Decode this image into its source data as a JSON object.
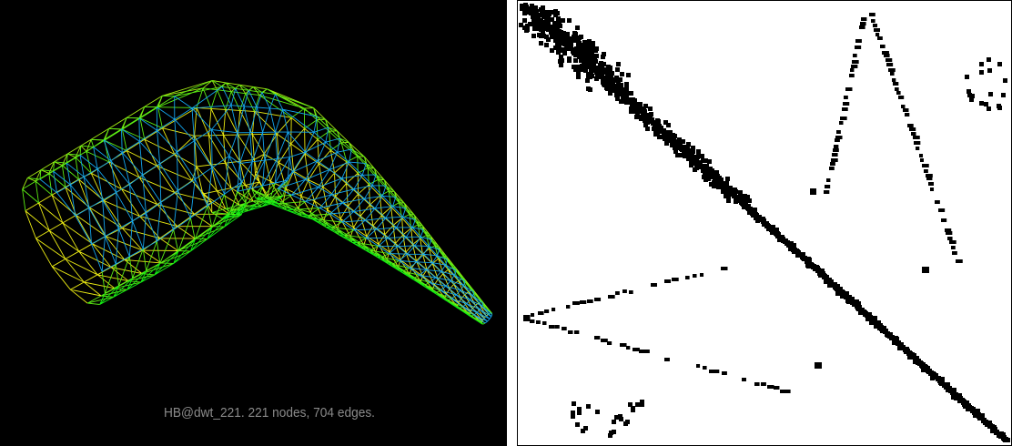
{
  "caption": "HB@dwt_221. 221 nodes, 704 edges."
}
